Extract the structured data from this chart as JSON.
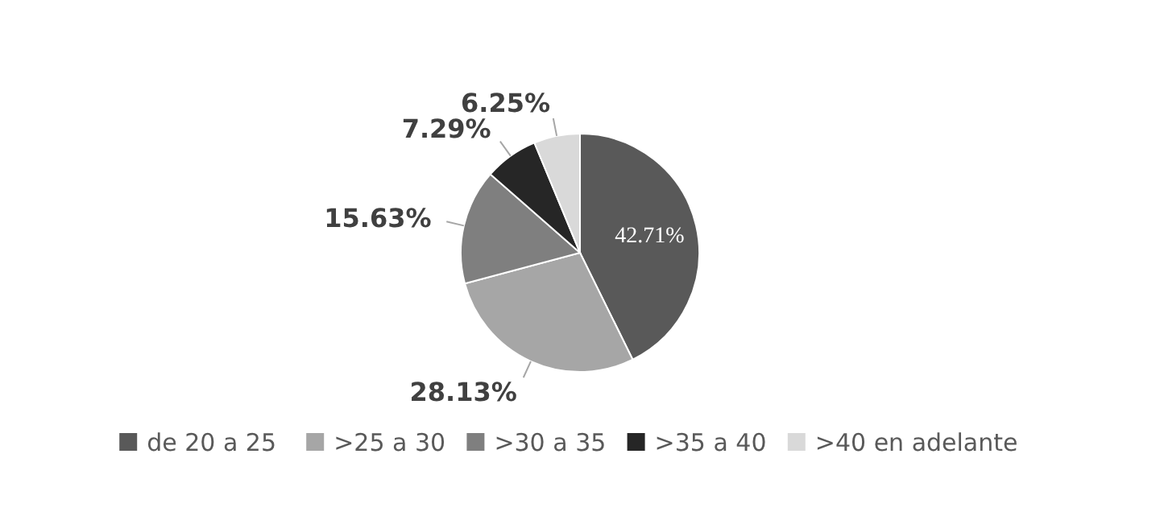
{
  "chart_data": {
    "type": "pie",
    "categories": [
      "de 20 a 25",
      ">25 a 30",
      ">30 a 35",
      ">35 a 40",
      ">40 en adelante"
    ],
    "values": [
      42.71,
      28.13,
      15.63,
      7.29,
      6.25
    ],
    "colors": [
      "#595959",
      "#a6a6a6",
      "#7f7f7f",
      "#262626",
      "#d9d9d9"
    ],
    "value_labels": [
      "42.71%",
      "28.13%",
      "15.63%",
      "7.29%",
      "6.25%"
    ],
    "legend": "bottom"
  }
}
